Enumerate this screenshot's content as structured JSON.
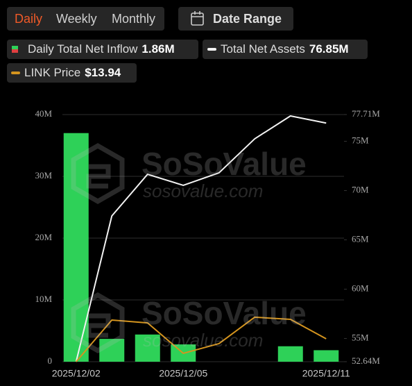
{
  "tabs": [
    "Daily",
    "Weekly",
    "Monthly"
  ],
  "active_tab": 0,
  "date_range": "Date Range",
  "watermark": {
    "title": "SoSoValue",
    "url": "sosovalue.com"
  },
  "chart_data": {
    "type": "bar",
    "categories": [
      "2025/12/02",
      null,
      null,
      "2025/12/05",
      null,
      null,
      null,
      "2025/12/11"
    ],
    "ylim": [
      0,
      40
    ],
    "yticks": [
      {
        "value": 0,
        "label": "0"
      },
      {
        "value": 10,
        "label": "10M"
      },
      {
        "value": 20,
        "label": "20M"
      },
      {
        "value": 30,
        "label": "30M"
      },
      {
        "value": 40,
        "label": "40M"
      }
    ],
    "y2lim": [
      52.64,
      77.71
    ],
    "y2ticks": [
      {
        "value": 52.64,
        "label": "52.64M"
      },
      {
        "value": 55,
        "label": "55M"
      },
      {
        "value": 60,
        "label": "60M"
      },
      {
        "value": 65,
        "label": "65M"
      },
      {
        "value": 70,
        "label": "70M"
      },
      {
        "value": 75,
        "label": "75M"
      },
      {
        "value": 77.71,
        "label": "77.71M"
      }
    ],
    "y3lim": [
      12.9,
      24.11
    ],
    "grid": true,
    "series": [
      {
        "name": "Daily Total Net Inflow",
        "legend_value": "1.86M",
        "color": "#2ed158",
        "kind": "bar",
        "axis": "y",
        "values": [
          37,
          3.7,
          4.4,
          2.8,
          0,
          0,
          2.5,
          1.86
        ]
      },
      {
        "name": "Total Net Assets",
        "legend_value": "76.85M",
        "color": "#f2f2f2",
        "kind": "line",
        "axis": "y2",
        "values": [
          52.64,
          67.43,
          71.65,
          70.53,
          71.8,
          75.25,
          77.57,
          76.85
        ]
      },
      {
        "name": "LINK Price",
        "legend_value": "$13.94",
        "color": "#d4941e",
        "kind": "line",
        "axis": "y3",
        "values": [
          12.9,
          14.79,
          14.66,
          13.28,
          13.72,
          14.92,
          14.82,
          13.94
        ]
      }
    ]
  }
}
